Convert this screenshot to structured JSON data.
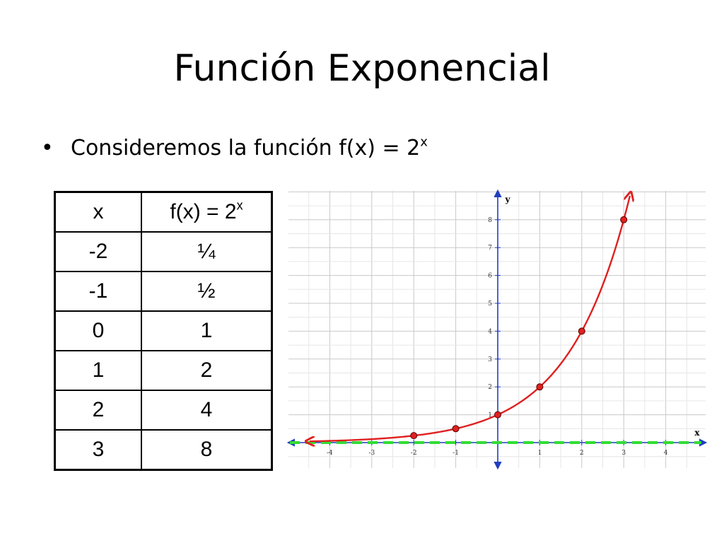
{
  "slide": {
    "title": "Función Exponencial",
    "bullet_text": "Consideremos la función f(x) = 2",
    "bullet_exponent": "x",
    "bullet_symbol": "•"
  },
  "table": {
    "header_x": "x",
    "header_fx": "f(x) = 2",
    "header_fx_exponent": "x",
    "rows": [
      {
        "x": "-2",
        "fx": "¼"
      },
      {
        "x": "-1",
        "fx": "½"
      },
      {
        "x": "0",
        "fx": "1"
      },
      {
        "x": "1",
        "fx": "2"
      },
      {
        "x": "2",
        "fx": "4"
      },
      {
        "x": "3",
        "fx": "8"
      }
    ]
  },
  "chart_data": {
    "type": "line",
    "function": "f(x) = 2^x",
    "xlabel": "x",
    "ylabel": "y",
    "xlim": [
      -4.5,
      4.5
    ],
    "ylim": [
      0,
      9
    ],
    "x_ticks": [
      "-4",
      "-3",
      "-2",
      "-1",
      "1",
      "2",
      "3",
      "4"
    ],
    "y_ticks": [
      "1",
      "2",
      "3",
      "4",
      "5",
      "6",
      "7",
      "8"
    ],
    "points": [
      {
        "x": -2,
        "y": 0.25
      },
      {
        "x": -1,
        "y": 0.5
      },
      {
        "x": 0,
        "y": 1
      },
      {
        "x": 1,
        "y": 2
      },
      {
        "x": 2,
        "y": 4
      },
      {
        "x": 3,
        "y": 8
      }
    ],
    "asymptote": {
      "y": 0,
      "style": "dashed"
    },
    "curve_color": "#e02020",
    "point_color": "#e02020",
    "asymptote_color": "#33dd33",
    "grid": true
  }
}
